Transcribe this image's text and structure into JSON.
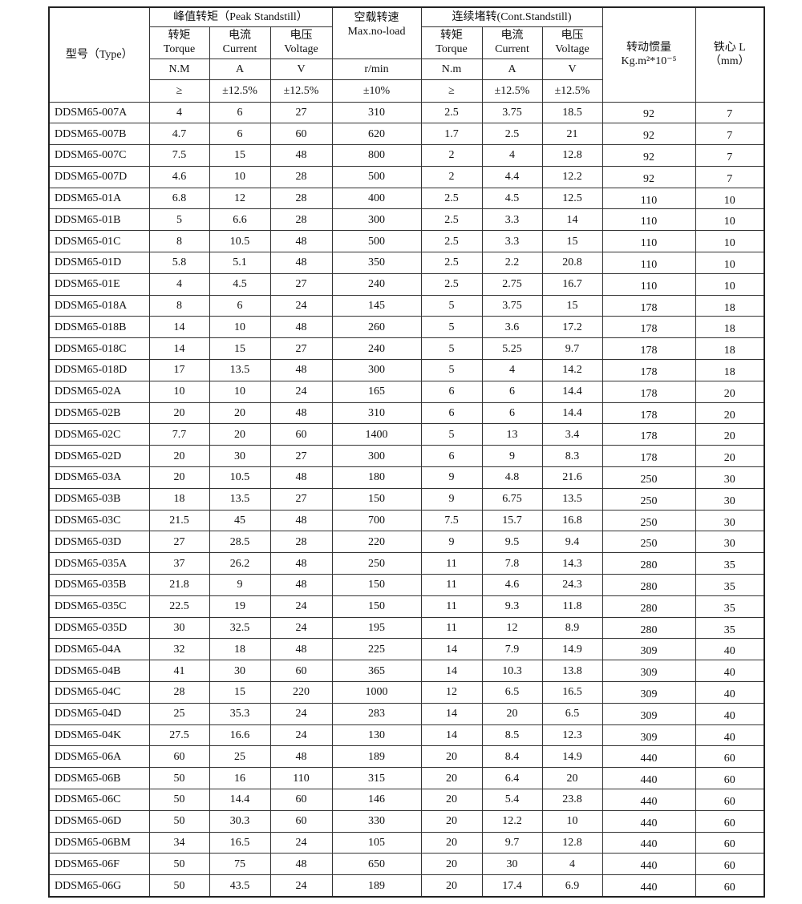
{
  "header": {
    "type": "型号（Type）",
    "peak": {
      "title": "峰值转矩（Peak Standstill）",
      "cols": [
        {
          "name": "转矩",
          "en": "Torque",
          "unit": "N.M",
          "tol": "≥"
        },
        {
          "name": "电流",
          "en": "Current",
          "unit": "A",
          "tol": "±12.5%"
        },
        {
          "name": "电压",
          "en": "Voltage",
          "unit": "V",
          "tol": "±12.5%"
        }
      ]
    },
    "noload": {
      "title": "空载转速",
      "en": "Max.no-load",
      "unit": "r/min",
      "tol": "±10%"
    },
    "cont": {
      "title": "连续堵转(Cont.Standstill)",
      "cols": [
        {
          "name": "转矩",
          "en": "Torque",
          "unit": "N.m",
          "tol": "≥"
        },
        {
          "name": "电流",
          "en": "Current",
          "unit": "A",
          "tol": "±12.5%"
        },
        {
          "name": "电压",
          "en": "Voltage",
          "unit": "V",
          "tol": "±12.5%"
        }
      ]
    },
    "inertia": {
      "title": "转动惯量",
      "unit": "Kg.m²*10⁻⁵"
    },
    "iron": {
      "title": "铁心 L",
      "unit": "（mm）"
    }
  },
  "table": {
    "rows": [
      [
        "DDSM65-007A",
        "4",
        "6",
        "27",
        "310",
        "2.5",
        "3.75",
        "18.5",
        "92",
        "7"
      ],
      [
        "DDSM65-007B",
        "4.7",
        "6",
        "60",
        "620",
        "1.7",
        "2.5",
        "21",
        "92",
        "7"
      ],
      [
        "DDSM65-007C",
        "7.5",
        "15",
        "48",
        "800",
        "2",
        "4",
        "12.8",
        "92",
        "7"
      ],
      [
        "DDSM65-007D",
        "4.6",
        "10",
        "28",
        "500",
        "2",
        "4.4",
        "12.2",
        "92",
        "7"
      ],
      [
        "DDSM65-01A",
        "6.8",
        "12",
        "28",
        "400",
        "2.5",
        "4.5",
        "12.5",
        "110",
        "10"
      ],
      [
        "DDSM65-01B",
        "5",
        "6.6",
        "28",
        "300",
        "2.5",
        "3.3",
        "14",
        "110",
        "10"
      ],
      [
        "DDSM65-01C",
        "8",
        "10.5",
        "48",
        "500",
        "2.5",
        "3.3",
        "15",
        "110",
        "10"
      ],
      [
        "DDSM65-01D",
        "5.8",
        "5.1",
        "48",
        "350",
        "2.5",
        "2.2",
        "20.8",
        "110",
        "10"
      ],
      [
        "DDSM65-01E",
        "4",
        "4.5",
        "27",
        "240",
        "2.5",
        "2.75",
        "16.7",
        "110",
        "10"
      ],
      [
        "DDSM65-018A",
        "8",
        "6",
        "24",
        "145",
        "5",
        "3.75",
        "15",
        "178",
        "18"
      ],
      [
        "DDSM65-018B",
        "14",
        "10",
        "48",
        "260",
        "5",
        "3.6",
        "17.2",
        "178",
        "18"
      ],
      [
        "DDSM65-018C",
        "14",
        "15",
        "27",
        "240",
        "5",
        "5.25",
        "9.7",
        "178",
        "18"
      ],
      [
        "DDSM65-018D",
        "17",
        "13.5",
        "48",
        "300",
        "5",
        "4",
        "14.2",
        "178",
        "18"
      ],
      [
        "DDSM65-02A",
        "10",
        "10",
        "24",
        "165",
        "6",
        "6",
        "14.4",
        "178",
        "20"
      ],
      [
        "DDSM65-02B",
        "20",
        "20",
        "48",
        "310",
        "6",
        "6",
        "14.4",
        "178",
        "20"
      ],
      [
        "DDSM65-02C",
        "7.7",
        "20",
        "60",
        "1400",
        "5",
        "13",
        "3.4",
        "178",
        "20"
      ],
      [
        "DDSM65-02D",
        "20",
        "30",
        "27",
        "300",
        "6",
        "9",
        "8.3",
        "178",
        "20"
      ],
      [
        "DDSM65-03A",
        "20",
        "10.5",
        "48",
        "180",
        "9",
        "4.8",
        "21.6",
        "250",
        "30"
      ],
      [
        "DDSM65-03B",
        "18",
        "13.5",
        "27",
        "150",
        "9",
        "6.75",
        "13.5",
        "250",
        "30"
      ],
      [
        "DDSM65-03C",
        "21.5",
        "45",
        "48",
        "700",
        "7.5",
        "15.7",
        "16.8",
        "250",
        "30"
      ],
      [
        "DDSM65-03D",
        "27",
        "28.5",
        "28",
        "220",
        "9",
        "9.5",
        "9.4",
        "250",
        "30"
      ],
      [
        "DDSM65-035A",
        "37",
        "26.2",
        "48",
        "250",
        "11",
        "7.8",
        "14.3",
        "280",
        "35"
      ],
      [
        "DDSM65-035B",
        "21.8",
        "9",
        "48",
        "150",
        "11",
        "4.6",
        "24.3",
        "280",
        "35"
      ],
      [
        "DDSM65-035C",
        "22.5",
        "19",
        "24",
        "150",
        "11",
        "9.3",
        "11.8",
        "280",
        "35"
      ],
      [
        "DDSM65-035D",
        "30",
        "32.5",
        "24",
        "195",
        "11",
        "12",
        "8.9",
        "280",
        "35"
      ],
      [
        "DDSM65-04A",
        "32",
        "18",
        "48",
        "225",
        "14",
        "7.9",
        "14.9",
        "309",
        "40"
      ],
      [
        "DDSM65-04B",
        "41",
        "30",
        "60",
        "365",
        "14",
        "10.3",
        "13.8",
        "309",
        "40"
      ],
      [
        "DDSM65-04C",
        "28",
        "15",
        "220",
        "1000",
        "12",
        "6.5",
        "16.5",
        "309",
        "40"
      ],
      [
        "DDSM65-04D",
        "25",
        "35.3",
        "24",
        "283",
        "14",
        "20",
        "6.5",
        "309",
        "40"
      ],
      [
        "DDSM65-04K",
        "27.5",
        "16.6",
        "24",
        "130",
        "14",
        "8.5",
        "12.3",
        "309",
        "40"
      ],
      [
        "DDSM65-06A",
        "60",
        "25",
        "48",
        "189",
        "20",
        "8.4",
        "14.9",
        "440",
        "60"
      ],
      [
        "DDSM65-06B",
        "50",
        "16",
        "110",
        "315",
        "20",
        "6.4",
        "20",
        "440",
        "60"
      ],
      [
        "DDSM65-06C",
        "50",
        "14.4",
        "60",
        "146",
        "20",
        "5.4",
        "23.8",
        "440",
        "60"
      ],
      [
        "DDSM65-06D",
        "50",
        "30.3",
        "60",
        "330",
        "20",
        "12.2",
        "10",
        "440",
        "60"
      ],
      [
        "DDSM65-06BM",
        "34",
        "16.5",
        "24",
        "105",
        "20",
        "9.7",
        "12.8",
        "440",
        "60"
      ],
      [
        "DDSM65-06F",
        "50",
        "75",
        "48",
        "650",
        "20",
        "30",
        "4",
        "440",
        "60"
      ],
      [
        "DDSM65-06G",
        "50",
        "43.5",
        "24",
        "189",
        "20",
        "17.4",
        "6.9",
        "440",
        "60"
      ]
    ]
  }
}
